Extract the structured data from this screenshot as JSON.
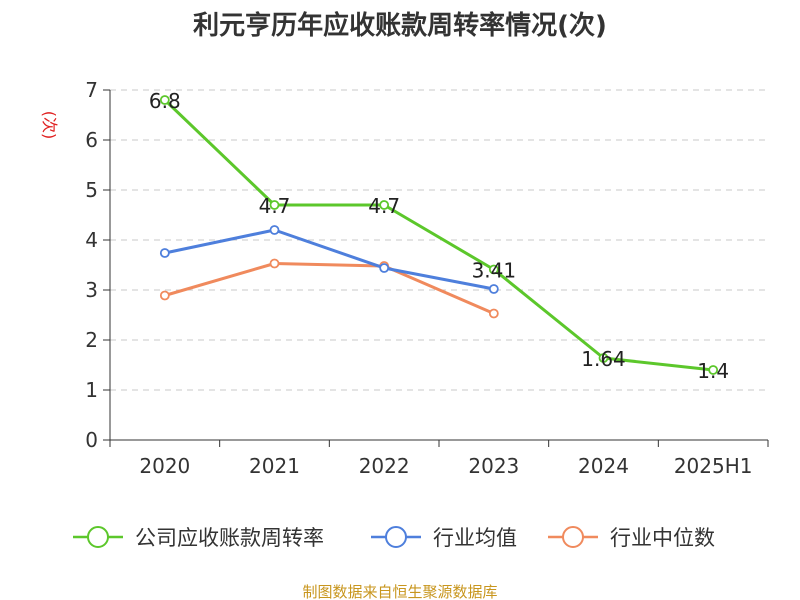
{
  "chart_data": {
    "type": "line",
    "title": "利元亨历年应收账款周转率情况(次)",
    "ylabel": "(次)",
    "xlabel": "",
    "categories": [
      "2020",
      "2021",
      "2022",
      "2023",
      "2024",
      "2025H1"
    ],
    "ylim": [
      0,
      7
    ],
    "yticks": [
      "0",
      "1",
      "2",
      "3",
      "4",
      "5",
      "6",
      "7"
    ],
    "grid": true,
    "legend_position": "bottom",
    "series": [
      {
        "name": "公司应收账款周转率",
        "color": "#5cc72b",
        "values": [
          6.8,
          4.7,
          4.7,
          3.41,
          1.64,
          1.4
        ],
        "labels": [
          "6.8",
          "4.7",
          "4.7",
          "3.41",
          "1.64",
          "1.4"
        ]
      },
      {
        "name": "行业均值",
        "color": "#4e7fdc",
        "values": [
          3.74,
          4.2,
          3.44,
          3.02,
          null,
          null
        ]
      },
      {
        "name": "行业中位数",
        "color": "#f08a5d",
        "values": [
          2.89,
          3.53,
          3.48,
          2.53,
          null,
          null
        ]
      }
    ],
    "source": "制图数据来自恒生聚源数据库"
  }
}
